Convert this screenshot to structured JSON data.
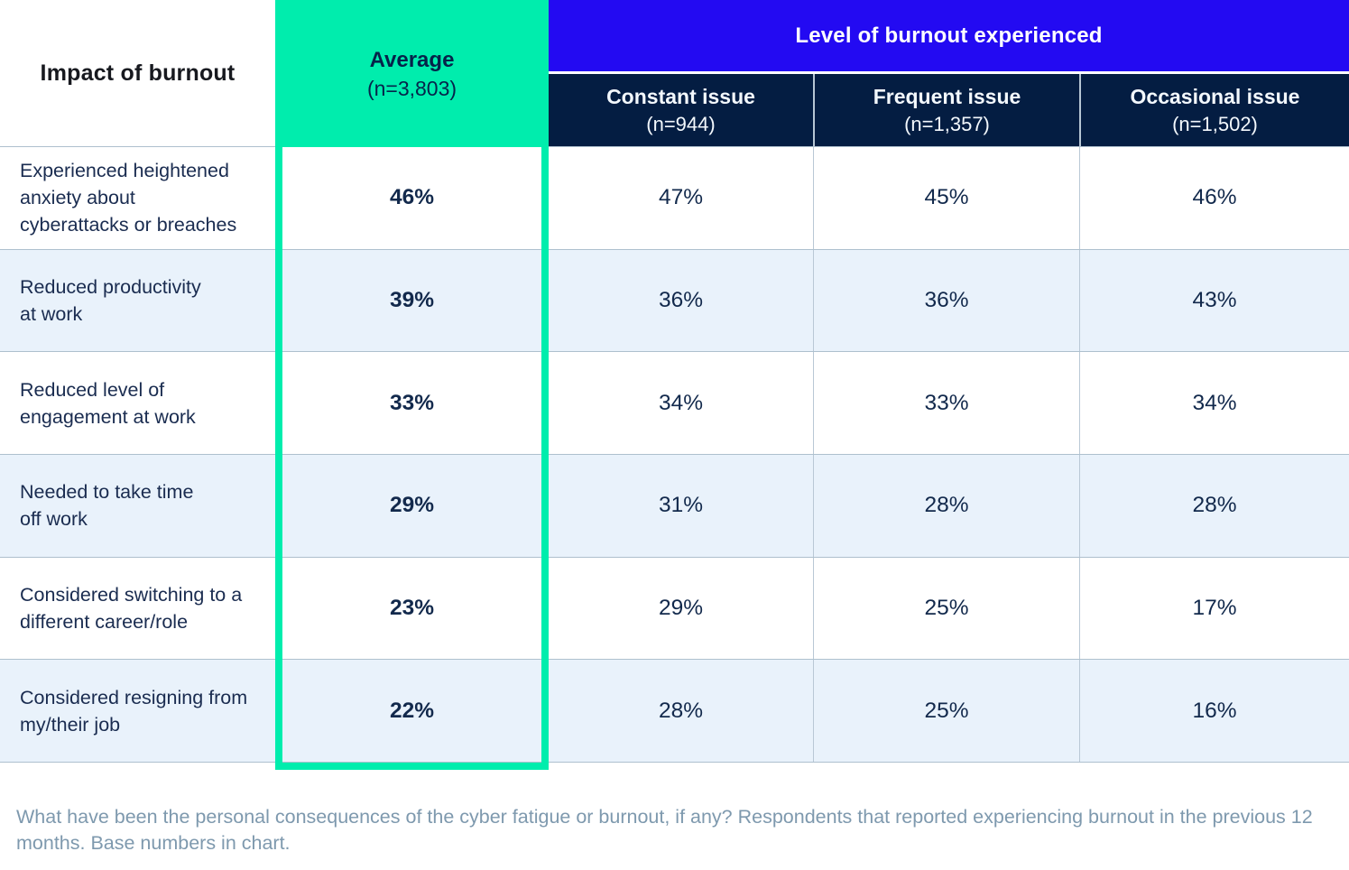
{
  "table": {
    "corner_header": "Impact of burnout",
    "average_header": {
      "title": "Average",
      "n": "(n=3,803)"
    },
    "group_header": "Level of burnout experienced",
    "sub_headers": [
      {
        "title": "Constant issue",
        "n": "(n=944)"
      },
      {
        "title": "Frequent issue",
        "n": "(n=1,357)"
      },
      {
        "title": "Occasional issue",
        "n": "(n=1,502)"
      }
    ],
    "rows": [
      {
        "label": "Experienced heightened\nanxiety about\ncyberattacks or breaches",
        "average": "46%",
        "values": [
          "47%",
          "45%",
          "46%"
        ]
      },
      {
        "label": "Reduced productivity\nat work",
        "average": "39%",
        "values": [
          "36%",
          "36%",
          "43%"
        ]
      },
      {
        "label": "Reduced level of\nengagement at work",
        "average": "33%",
        "values": [
          "34%",
          "33%",
          "34%"
        ]
      },
      {
        "label": "Needed to take time\noff work",
        "average": "29%",
        "values": [
          "31%",
          "28%",
          "28%"
        ]
      },
      {
        "label": "Considered switching to a\ndifferent career/role",
        "average": "23%",
        "values": [
          "29%",
          "25%",
          "17%"
        ]
      },
      {
        "label": "Considered resigning from\nmy/their job",
        "average": "22%",
        "values": [
          "28%",
          "25%",
          "16%"
        ]
      }
    ]
  },
  "footnote": "What have been the personal consequences of the cyber fatigue or burnout, if any? Respondents that reported experiencing burnout in the previous 12 months. Base numbers in chart.",
  "colors": {
    "green": "#00edad",
    "blue": "#230af2",
    "navy": "#041d42",
    "stripe": "#e9f2fb",
    "divider": "#aec0ce",
    "cell_text": "#12294c",
    "label_text": "#1a2c50",
    "muted": "#7e99ae"
  },
  "chart_data": {
    "type": "table",
    "title": "Impact of burnout",
    "group_header": "Level of burnout experienced",
    "units": "percent",
    "columns": [
      "Impact of burnout",
      "Average (n=3,803)",
      "Constant issue (n=944)",
      "Frequent issue (n=1,357)",
      "Occasional issue (n=1,502)"
    ],
    "rows": [
      [
        "Experienced heightened anxiety about cyberattacks or breaches",
        46,
        47,
        45,
        46
      ],
      [
        "Reduced productivity at work",
        39,
        36,
        36,
        43
      ],
      [
        "Reduced level of engagement at work",
        33,
        34,
        33,
        34
      ],
      [
        "Needed to take time off work",
        29,
        31,
        28,
        28
      ],
      [
        "Considered switching to a different career/role",
        23,
        29,
        25,
        17
      ],
      [
        "Considered resigning from my/their job",
        22,
        28,
        25,
        16
      ]
    ]
  }
}
